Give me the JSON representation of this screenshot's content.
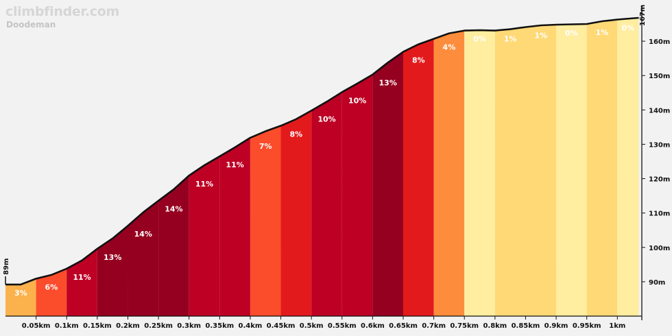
{
  "header": {
    "brand": "climbfinder.com",
    "climb_name": "Doodeman"
  },
  "chart_data": {
    "type": "area",
    "title": "",
    "xlabel": "",
    "ylabel": "",
    "x_unit": "km",
    "y_unit": "m",
    "xlim": [
      0,
      1.04
    ],
    "ylim": [
      80,
      168
    ],
    "start_label": "89m",
    "end_label": "167m",
    "x_ticks": [
      "0.05km",
      "0.1km",
      "0.15km",
      "0.2km",
      "0.25km",
      "0.3km",
      "0.35km",
      "0.4km",
      "0.45km",
      "0.5km",
      "0.55km",
      "0.6km",
      "0.65km",
      "0.7km",
      "0.75km",
      "0.8km",
      "0.85km",
      "0.9km",
      "0.95km",
      "1km"
    ],
    "y_ticks": [
      "90m",
      "100m",
      "110m",
      "120m",
      "130m",
      "140m",
      "150m",
      "160m"
    ],
    "profile": [
      {
        "x": 0.0,
        "y": 89.2
      },
      {
        "x": 0.025,
        "y": 89.2
      },
      {
        "x": 0.05,
        "y": 90.9
      },
      {
        "x": 0.075,
        "y": 92.0
      },
      {
        "x": 0.1,
        "y": 93.8
      },
      {
        "x": 0.125,
        "y": 96.2
      },
      {
        "x": 0.15,
        "y": 99.6
      },
      {
        "x": 0.175,
        "y": 102.6
      },
      {
        "x": 0.2,
        "y": 106.3
      },
      {
        "x": 0.225,
        "y": 110.2
      },
      {
        "x": 0.25,
        "y": 113.6
      },
      {
        "x": 0.275,
        "y": 116.9
      },
      {
        "x": 0.3,
        "y": 120.9
      },
      {
        "x": 0.325,
        "y": 123.9
      },
      {
        "x": 0.35,
        "y": 126.5
      },
      {
        "x": 0.375,
        "y": 129.1
      },
      {
        "x": 0.4,
        "y": 131.9
      },
      {
        "x": 0.425,
        "y": 133.8
      },
      {
        "x": 0.45,
        "y": 135.4
      },
      {
        "x": 0.475,
        "y": 137.3
      },
      {
        "x": 0.5,
        "y": 139.8
      },
      {
        "x": 0.525,
        "y": 142.4
      },
      {
        "x": 0.55,
        "y": 145.2
      },
      {
        "x": 0.575,
        "y": 147.7
      },
      {
        "x": 0.6,
        "y": 150.3
      },
      {
        "x": 0.625,
        "y": 153.8
      },
      {
        "x": 0.65,
        "y": 156.9
      },
      {
        "x": 0.675,
        "y": 159.1
      },
      {
        "x": 0.7,
        "y": 160.7
      },
      {
        "x": 0.725,
        "y": 162.3
      },
      {
        "x": 0.75,
        "y": 163.1
      },
      {
        "x": 0.775,
        "y": 163.2
      },
      {
        "x": 0.8,
        "y": 163.1
      },
      {
        "x": 0.825,
        "y": 163.5
      },
      {
        "x": 0.85,
        "y": 164.1
      },
      {
        "x": 0.875,
        "y": 164.6
      },
      {
        "x": 0.9,
        "y": 164.8
      },
      {
        "x": 0.925,
        "y": 164.9
      },
      {
        "x": 0.95,
        "y": 165.0
      },
      {
        "x": 0.975,
        "y": 165.8
      },
      {
        "x": 1.0,
        "y": 166.3
      },
      {
        "x": 1.035,
        "y": 166.8
      }
    ],
    "segments": [
      {
        "x0": 0.0,
        "x1": 0.05,
        "grade": "3%",
        "color": "#fbb14c"
      },
      {
        "x0": 0.05,
        "x1": 0.1,
        "grade": "6%",
        "color": "#fb4c2b"
      },
      {
        "x0": 0.1,
        "x1": 0.15,
        "grade": "11%",
        "color": "#bd0024"
      },
      {
        "x0": 0.15,
        "x1": 0.2,
        "grade": "13%",
        "color": "#950020"
      },
      {
        "x0": 0.2,
        "x1": 0.25,
        "grade": "14%",
        "color": "#950020"
      },
      {
        "x0": 0.25,
        "x1": 0.3,
        "grade": "14%",
        "color": "#950020"
      },
      {
        "x0": 0.3,
        "x1": 0.35,
        "grade": "11%",
        "color": "#bd0024"
      },
      {
        "x0": 0.35,
        "x1": 0.4,
        "grade": "11%",
        "color": "#bd0024"
      },
      {
        "x0": 0.4,
        "x1": 0.45,
        "grade": "7%",
        "color": "#fb4c2b"
      },
      {
        "x0": 0.45,
        "x1": 0.5,
        "grade": "8%",
        "color": "#e31a1c"
      },
      {
        "x0": 0.5,
        "x1": 0.55,
        "grade": "10%",
        "color": "#bd0024"
      },
      {
        "x0": 0.55,
        "x1": 0.6,
        "grade": "10%",
        "color": "#bd0024"
      },
      {
        "x0": 0.6,
        "x1": 0.65,
        "grade": "13%",
        "color": "#950020"
      },
      {
        "x0": 0.65,
        "x1": 0.7,
        "grade": "8%",
        "color": "#e31a1c"
      },
      {
        "x0": 0.7,
        "x1": 0.75,
        "grade": "4%",
        "color": "#fd8d3c"
      },
      {
        "x0": 0.75,
        "x1": 0.8,
        "grade": "0%",
        "color": "#ffeda0"
      },
      {
        "x0": 0.8,
        "x1": 0.85,
        "grade": "1%",
        "color": "#fed976"
      },
      {
        "x0": 0.85,
        "x1": 0.9,
        "grade": "1%",
        "color": "#fed976"
      },
      {
        "x0": 0.9,
        "x1": 0.95,
        "grade": "0%",
        "color": "#ffeda0"
      },
      {
        "x0": 0.95,
        "x1": 1.0,
        "grade": "1%",
        "color": "#fed976"
      },
      {
        "x0": 1.0,
        "x1": 1.035,
        "grade": "0%",
        "color": "#ffeda0"
      }
    ],
    "grid": false,
    "legend": "none"
  }
}
